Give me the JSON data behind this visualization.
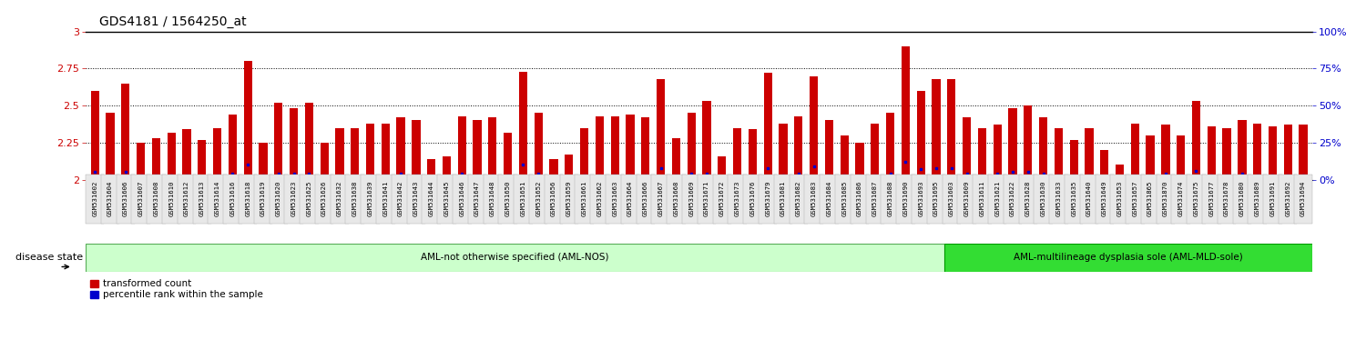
{
  "title": "GDS4181 / 1564250_at",
  "samples": [
    "GSM531602",
    "GSM531604",
    "GSM531606",
    "GSM531607",
    "GSM531608",
    "GSM531610",
    "GSM531612",
    "GSM531613",
    "GSM531614",
    "GSM531616",
    "GSM531618",
    "GSM531619",
    "GSM531620",
    "GSM531623",
    "GSM531625",
    "GSM531626",
    "GSM531632",
    "GSM531638",
    "GSM531639",
    "GSM531641",
    "GSM531642",
    "GSM531643",
    "GSM531644",
    "GSM531645",
    "GSM531646",
    "GSM531647",
    "GSM531648",
    "GSM531650",
    "GSM531651",
    "GSM531652",
    "GSM531656",
    "GSM531659",
    "GSM531661",
    "GSM531662",
    "GSM531663",
    "GSM531664",
    "GSM531666",
    "GSM531667",
    "GSM531668",
    "GSM531669",
    "GSM531671",
    "GSM531672",
    "GSM531673",
    "GSM531676",
    "GSM531679",
    "GSM531681",
    "GSM531682",
    "GSM531683",
    "GSM531684",
    "GSM531685",
    "GSM531686",
    "GSM531687",
    "GSM531688",
    "GSM531690",
    "GSM531693",
    "GSM531695",
    "GSM531603",
    "GSM531609",
    "GSM531611",
    "GSM531621",
    "GSM531622",
    "GSM531628",
    "GSM531630",
    "GSM531633",
    "GSM531635",
    "GSM531640",
    "GSM531649",
    "GSM531653",
    "GSM531657",
    "GSM531865",
    "GSM531870",
    "GSM531674",
    "GSM531675",
    "GSM531677",
    "GSM531678",
    "GSM531680",
    "GSM531689",
    "GSM531691",
    "GSM531692",
    "GSM531694"
  ],
  "red_values": [
    2.6,
    2.45,
    2.65,
    2.25,
    2.28,
    2.32,
    2.34,
    2.27,
    2.35,
    2.44,
    2.8,
    2.25,
    2.52,
    2.48,
    2.52,
    2.25,
    2.35,
    2.35,
    2.38,
    2.38,
    2.42,
    2.4,
    2.14,
    2.16,
    2.43,
    2.4,
    2.42,
    2.32,
    2.73,
    2.45,
    2.14,
    2.17,
    2.35,
    2.43,
    2.43,
    2.44,
    2.42,
    2.68,
    2.28,
    2.45,
    2.53,
    2.16,
    2.35,
    2.34,
    2.72,
    2.38,
    2.43,
    2.7,
    2.4,
    2.3,
    2.25,
    2.38,
    2.45,
    2.9,
    2.6,
    2.68,
    2.68,
    2.42,
    2.35,
    2.37,
    2.48,
    2.5,
    2.42,
    2.35,
    2.27,
    2.35,
    2.2,
    2.1,
    2.38,
    2.3,
    2.37,
    2.3,
    2.53,
    2.36,
    2.35,
    2.4,
    2.38,
    2.36,
    2.37,
    2.37
  ],
  "blue_pct": [
    5,
    3,
    5,
    3,
    3,
    3,
    3,
    2,
    3,
    4,
    10,
    3,
    4,
    4,
    4,
    3,
    3,
    3,
    3,
    3,
    4,
    3,
    2,
    2,
    4,
    3,
    3,
    3,
    10,
    4,
    2,
    2,
    3,
    3,
    3,
    3,
    3,
    8,
    3,
    4,
    4,
    2,
    3,
    3,
    8,
    3,
    4,
    9,
    3,
    3,
    3,
    3,
    4,
    12,
    7,
    8,
    8,
    4,
    3,
    4,
    5,
    5,
    4,
    3,
    3,
    3,
    2,
    2,
    3,
    3,
    4,
    3,
    6,
    3,
    3,
    4,
    3,
    3,
    3,
    3
  ],
  "group_labels": [
    "AML-not otherwise specified (AML-NOS)",
    "AML-multilineage dysplasia sole (AML-MLD-sole)"
  ],
  "group_boundaries": [
    0,
    56,
    80
  ],
  "group_colors": [
    "#ccffcc",
    "#33dd33"
  ],
  "ylim_left": [
    2.0,
    3.0
  ],
  "ylim_right": [
    0,
    100
  ],
  "yticks_left": [
    2.0,
    2.25,
    2.5,
    2.75,
    3.0
  ],
  "yticks_right": [
    0,
    25,
    50,
    75,
    100
  ],
  "bar_color": "#cc0000",
  "dot_color": "#0000cc",
  "bg_color": "#ffffff",
  "legend_red_label": "transformed count",
  "legend_blue_label": "percentile rank within the sample",
  "disease_state_label": "disease state",
  "left_axis_color": "#cc0000",
  "right_axis_color": "#0000cc",
  "title_fontsize": 10,
  "tick_fontsize": 6,
  "bar_width": 0.55
}
